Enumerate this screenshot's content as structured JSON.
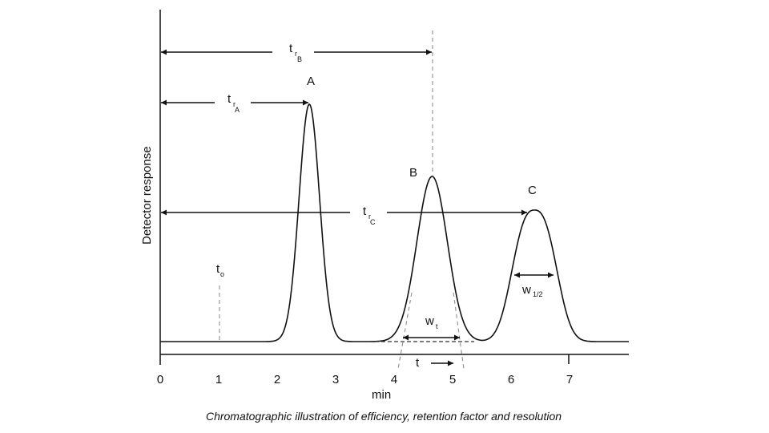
{
  "ylabel": "Detector response",
  "xlabel": "min",
  "caption": "Chromatographic illustration of efficiency, retention factor and resolution",
  "x_ticks": [
    "0",
    "1",
    "2",
    "3",
    "4",
    "5",
    "6",
    "7"
  ],
  "peaks": [
    {
      "label": "A",
      "retention_min": 2.55
    },
    {
      "label": "B",
      "retention_min": 4.65
    },
    {
      "label": "C",
      "retention_min": 6.4
    }
  ],
  "annotations": {
    "trA": {
      "main": "t",
      "sub1": "r",
      "sub2": "A"
    },
    "trB": {
      "main": "t",
      "sub1": "r",
      "sub2": "B"
    },
    "trC": {
      "main": "t",
      "sub1": "r",
      "sub2": "C"
    },
    "t0": {
      "main": "t",
      "sub": "o"
    },
    "wt": {
      "main": "w",
      "sub": "t"
    },
    "whalf": {
      "main": "w",
      "sub": "1/2"
    },
    "t_arrow": "t"
  },
  "colors": {
    "line": "#111111",
    "dashed": "#999999"
  }
}
